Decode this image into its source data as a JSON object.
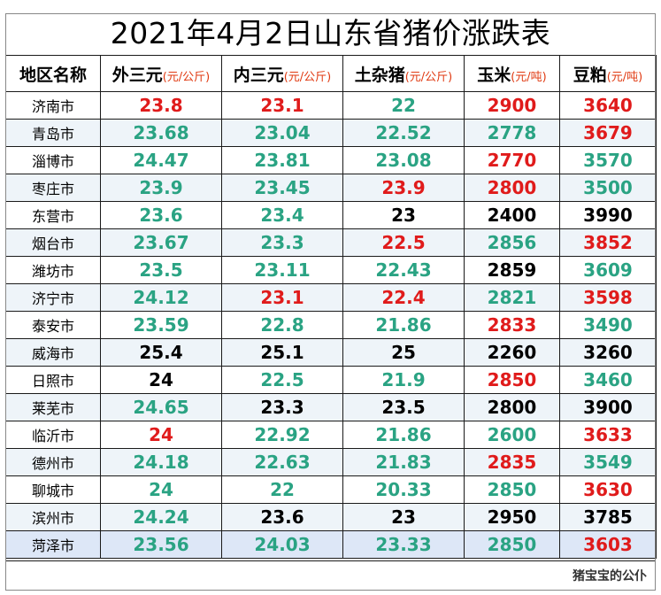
{
  "title": "2021年4月2日山东省猪价涨跌表",
  "headers": [
    {
      "label": "地区名称",
      "unit": ""
    },
    {
      "label": "外三元",
      "unit": "(元/公斤)"
    },
    {
      "label": "内三元",
      "unit": "(元/公斤)"
    },
    {
      "label": "土杂猪",
      "unit": "(元/公斤)"
    },
    {
      "label": "玉米",
      "unit": "(元/吨)"
    },
    {
      "label": "豆粕",
      "unit": "(元/吨)"
    }
  ],
  "colors": {
    "red": "#e01b1b",
    "green": "#2aa383",
    "black": "#000000",
    "unit": "#e03a12"
  },
  "rows": [
    {
      "city": "济南市",
      "cells": [
        [
          "23.8",
          "red"
        ],
        [
          "23.1",
          "red"
        ],
        [
          "22",
          "green"
        ],
        [
          "2900",
          "red"
        ],
        [
          "3640",
          "red"
        ]
      ]
    },
    {
      "city": "青岛市",
      "cells": [
        [
          "23.68",
          "green"
        ],
        [
          "23.04",
          "green"
        ],
        [
          "22.52",
          "green"
        ],
        [
          "2778",
          "green"
        ],
        [
          "3679",
          "red"
        ]
      ]
    },
    {
      "city": "淄博市",
      "cells": [
        [
          "24.47",
          "green"
        ],
        [
          "23.81",
          "green"
        ],
        [
          "23.08",
          "green"
        ],
        [
          "2770",
          "red"
        ],
        [
          "3570",
          "green"
        ]
      ]
    },
    {
      "city": "枣庄市",
      "cells": [
        [
          "23.9",
          "green"
        ],
        [
          "23.45",
          "green"
        ],
        [
          "23.9",
          "red"
        ],
        [
          "2800",
          "red"
        ],
        [
          "3500",
          "green"
        ]
      ]
    },
    {
      "city": "东营市",
      "cells": [
        [
          "23.6",
          "green"
        ],
        [
          "23.4",
          "green"
        ],
        [
          "23",
          "black"
        ],
        [
          "2400",
          "black"
        ],
        [
          "3990",
          "black"
        ]
      ]
    },
    {
      "city": "烟台市",
      "cells": [
        [
          "23.67",
          "green"
        ],
        [
          "23.3",
          "green"
        ],
        [
          "22.5",
          "red"
        ],
        [
          "2856",
          "green"
        ],
        [
          "3852",
          "red"
        ]
      ]
    },
    {
      "city": "潍坊市",
      "cells": [
        [
          "23.5",
          "green"
        ],
        [
          "23.11",
          "green"
        ],
        [
          "22.43",
          "green"
        ],
        [
          "2859",
          "black"
        ],
        [
          "3609",
          "green"
        ]
      ]
    },
    {
      "city": "济宁市",
      "cells": [
        [
          "24.12",
          "green"
        ],
        [
          "23.1",
          "red"
        ],
        [
          "22.4",
          "red"
        ],
        [
          "2821",
          "green"
        ],
        [
          "3598",
          "red"
        ]
      ]
    },
    {
      "city": "泰安市",
      "cells": [
        [
          "23.59",
          "green"
        ],
        [
          "22.8",
          "green"
        ],
        [
          "21.86",
          "green"
        ],
        [
          "2833",
          "red"
        ],
        [
          "3490",
          "green"
        ]
      ]
    },
    {
      "city": "威海市",
      "cells": [
        [
          "25.4",
          "black"
        ],
        [
          "25.1",
          "black"
        ],
        [
          "25",
          "black"
        ],
        [
          "2260",
          "black"
        ],
        [
          "3260",
          "black"
        ]
      ]
    },
    {
      "city": "日照市",
      "cells": [
        [
          "24",
          "black"
        ],
        [
          "22.5",
          "green"
        ],
        [
          "21.9",
          "green"
        ],
        [
          "2850",
          "red"
        ],
        [
          "3460",
          "green"
        ]
      ]
    },
    {
      "city": "莱芜市",
      "cells": [
        [
          "24.65",
          "green"
        ],
        [
          "23.3",
          "black"
        ],
        [
          "23.5",
          "black"
        ],
        [
          "2800",
          "black"
        ],
        [
          "3900",
          "black"
        ]
      ]
    },
    {
      "city": "临沂市",
      "cells": [
        [
          "24",
          "red"
        ],
        [
          "22.92",
          "green"
        ],
        [
          "21.86",
          "green"
        ],
        [
          "2600",
          "green"
        ],
        [
          "3633",
          "red"
        ]
      ]
    },
    {
      "city": "德州市",
      "cells": [
        [
          "24.18",
          "green"
        ],
        [
          "22.63",
          "green"
        ],
        [
          "21.83",
          "green"
        ],
        [
          "2835",
          "red"
        ],
        [
          "3549",
          "green"
        ]
      ]
    },
    {
      "city": "聊城市",
      "cells": [
        [
          "24",
          "green"
        ],
        [
          "22",
          "green"
        ],
        [
          "20.33",
          "green"
        ],
        [
          "2850",
          "green"
        ],
        [
          "3630",
          "red"
        ]
      ]
    },
    {
      "city": "滨州市",
      "cells": [
        [
          "24.24",
          "green"
        ],
        [
          "23.6",
          "black"
        ],
        [
          "23",
          "black"
        ],
        [
          "2950",
          "black"
        ],
        [
          "3785",
          "black"
        ]
      ]
    },
    {
      "city": "菏泽市",
      "cells": [
        [
          "23.56",
          "green"
        ],
        [
          "24.03",
          "green"
        ],
        [
          "23.33",
          "green"
        ],
        [
          "2850",
          "green"
        ],
        [
          "3603",
          "red"
        ]
      ]
    }
  ],
  "footer": "猪宝宝的公仆"
}
